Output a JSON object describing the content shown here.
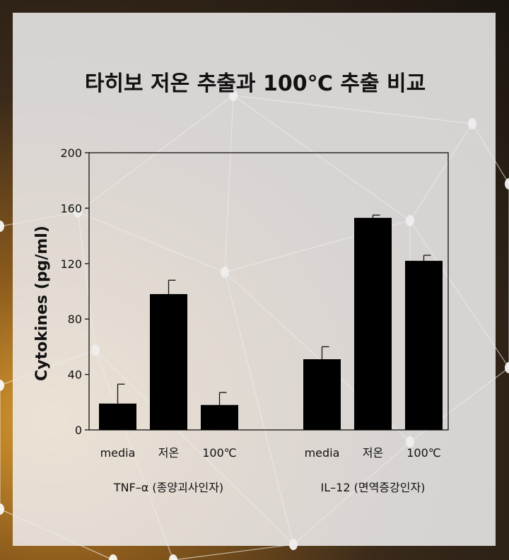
{
  "chart_data": {
    "type": "bar",
    "title": "타히보 저온 추출과 100℃ 추출 비교",
    "ylabel": "Cytokines (pg/ml)",
    "xlabel": "",
    "ylim": [
      0,
      200
    ],
    "yticks": [
      0,
      40,
      80,
      120,
      160,
      200
    ],
    "grid": false,
    "groups": [
      {
        "name": "TNF–α (종양괴사인자)",
        "categories": [
          "media",
          "저온",
          "100℃"
        ],
        "values": [
          19,
          98,
          18
        ],
        "errors": [
          14,
          10,
          9
        ]
      },
      {
        "name": "IL–12 (면역증강인자)",
        "categories": [
          "media",
          "저온",
          "100℃"
        ],
        "values": [
          51,
          153,
          122
        ],
        "errors": [
          9,
          2,
          4
        ]
      }
    ],
    "colors": {
      "bar": "#000000",
      "panel": "#eeecec"
    }
  }
}
